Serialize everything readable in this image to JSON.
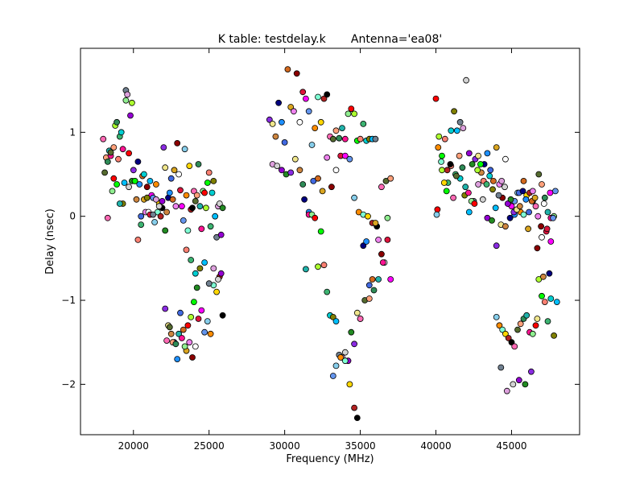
{
  "chart_data": {
    "type": "scatter",
    "title": "K table: testdelay.k       Antenna='ea08'",
    "xlabel": "Frequency (MHz)",
    "ylabel": "Delay (nsec)",
    "xlim": [
      16500,
      49500
    ],
    "ylim": [
      -2.6,
      2.0
    ],
    "xticks": [
      20000,
      25000,
      30000,
      35000,
      40000,
      45000
    ],
    "xtick_labels": [
      "20000",
      "25000",
      "30000",
      "35000",
      "40000",
      "45000"
    ],
    "yticks": [
      -2,
      -1,
      0,
      1
    ],
    "ytick_labels": [
      "−2",
      "−1",
      "0",
      "1"
    ],
    "grid": false,
    "legend": "none",
    "colors": [
      "#ff69b4",
      "#000080",
      "#90ee90",
      "#8b0000",
      "#00ced1",
      "#ff8c00",
      "#9400d3",
      "#556b2f",
      "#1e90ff",
      "#ff0000",
      "#ffffff",
      "#808000",
      "#7fffd4",
      "#228b22",
      "#ffa07a",
      "#4169e1",
      "#adff2f",
      "#dc143c",
      "#00bfff",
      "#ffd700",
      "#8a2be2",
      "#2e8b57",
      "#d2691e",
      "#00ff00",
      "#ff00ff",
      "#708090",
      "#b22222",
      "#f0e68c",
      "#20b2aa",
      "#daa520",
      "#fa8072",
      "#6495ed",
      "#dda0dd",
      "#000000",
      "#cd853f",
      "#ff1493",
      "#ee82ee",
      "#3cb371",
      "#87ceeb",
      "#d3d3d3"
    ],
    "series": [
      {
        "x": [
          18000,
          18100,
          18200,
          18300,
          18400,
          18500,
          18600,
          18700,
          18800,
          18900,
          19000,
          19100,
          19200,
          19300,
          19400,
          19500,
          19600,
          19700,
          19800,
          19900,
          20000,
          20100,
          20200,
          20300,
          20400,
          20500,
          20600,
          20700,
          20800,
          20900,
          21000,
          21100,
          21200,
          21300,
          21400,
          21500,
          21600,
          21700,
          21800,
          21900
        ],
        "y": [
          0.92,
          0.52,
          0.7,
          0.65,
          0.78,
          0.72,
          0.3,
          0.45,
          1.08,
          0.38,
          0.68,
          0.95,
          1.0,
          0.15,
          0.4,
          1.5,
          1.45,
          0.35,
          1.2,
          0.42,
          0.55,
          0.42,
          0.2,
          0.65,
          0.38,
          0.0,
          0.48,
          0.2,
          0.05,
          0.35,
          0.05,
          0.02,
          0.25,
          0.22,
          -0.07,
          0.38,
          0.05,
          0.15,
          0.0,
          0.1
        ]
      },
      {
        "x": [
          18300,
          18500,
          18700,
          18900,
          19100,
          19300,
          19500,
          19700,
          19900,
          20100,
          20300,
          20500,
          20700,
          20900,
          21100,
          21300,
          21500,
          21700,
          21900,
          22100
        ],
        "y": [
          -0.02,
          0.76,
          0.82,
          1.12,
          0.15,
          0.8,
          1.38,
          0.75,
          1.35,
          0.42,
          -0.28,
          -0.1,
          0.5,
          0.22,
          0.42,
          0.02,
          0.2,
          0.12,
          0.18,
          -0.17
        ]
      },
      {
        "x": [
          22000,
          22100,
          22200,
          22300,
          22400,
          22500,
          22600,
          22700,
          22800,
          22900,
          23000,
          23100,
          23200,
          23300,
          23400,
          23500,
          23600,
          23700,
          23800,
          23900,
          24000,
          24100,
          24200,
          24300,
          24400,
          24500,
          24600,
          24700,
          24800,
          24900,
          25000,
          25100,
          25200,
          25300,
          25400,
          25500,
          25600,
          25700,
          25800,
          25900
        ],
        "y": [
          0.82,
          0.58,
          0.05,
          0.22,
          0.28,
          0.45,
          0.2,
          0.55,
          0.12,
          0.87,
          0.5,
          0.31,
          0.12,
          -0.05,
          0.8,
          0.25,
          -0.17,
          0.6,
          0.08,
          0.1,
          0.3,
          0.18,
          0.25,
          0.62,
          0.12,
          -0.15,
          0.3,
          0.28,
          0.1,
          0.4,
          0.52,
          -0.12,
          0.28,
          0.42,
          0.0,
          -0.25,
          0.12,
          0.15,
          -0.22,
          0.1
        ]
      },
      {
        "x": [
          22100,
          22300,
          22500,
          22700,
          22900,
          23100,
          23300,
          23500,
          23700,
          23900,
          24100,
          24300,
          24500,
          24700,
          24900,
          25100,
          25300,
          25500,
          25700,
          25900,
          22200,
          22400,
          22600,
          22800,
          23000,
          23200,
          23400,
          23600,
          23800,
          24000
        ],
        "y": [
          -1.1,
          -1.3,
          -1.4,
          -1.5,
          -1.7,
          -1.15,
          -1.35,
          -1.6,
          -1.5,
          -1.68,
          -1.55,
          -1.22,
          -1.12,
          -1.38,
          -1.25,
          -1.4,
          -0.82,
          -0.9,
          -0.72,
          -1.18,
          -1.48,
          -1.32,
          -1.5,
          -1.52,
          -1.4,
          -1.45,
          -1.55,
          -1.3,
          -1.2,
          -1.02
        ]
      },
      {
        "x": [
          23500,
          23800,
          24100,
          24400,
          24700,
          25000,
          25300,
          25600,
          25800,
          24200
        ],
        "y": [
          -0.4,
          -0.52,
          -0.68,
          -0.62,
          -0.55,
          -0.8,
          -0.62,
          -0.75,
          -0.68,
          -0.85
        ]
      },
      {
        "x": [
          29000,
          29200,
          29400,
          29600,
          29800,
          30000,
          30200,
          30400,
          30600,
          30800,
          31000,
          31200,
          31400,
          31600,
          31800,
          32000,
          32200,
          32400,
          32600,
          32800,
          33000,
          33200,
          33400,
          33600,
          33800,
          34000,
          34200,
          34400,
          34600,
          34800,
          35000,
          35200,
          35400,
          35600,
          35800,
          36000
        ],
        "y": [
          1.15,
          1.1,
          0.95,
          1.35,
          1.12,
          0.88,
          1.75,
          1.3,
          1.25,
          1.7,
          1.12,
          1.48,
          1.4,
          1.25,
          0.85,
          1.05,
          1.42,
          1.12,
          1.4,
          1.45,
          0.95,
          0.92,
          1.02,
          0.93,
          1.05,
          0.92,
          1.22,
          1.28,
          1.22,
          0.9,
          0.92,
          1.1,
          0.9,
          0.92,
          0.92,
          0.92
        ]
      },
      {
        "x": [
          29200,
          29500,
          29800,
          30100,
          30400,
          30700,
          31000,
          31300,
          31600,
          31900,
          32200,
          32500,
          32800,
          33100,
          33400,
          33700,
          34000,
          34300,
          34600,
          34900,
          35200,
          35500,
          35800,
          36100,
          36400,
          36700,
          37000
        ],
        "y": [
          0.62,
          0.6,
          0.55,
          0.5,
          0.52,
          0.68,
          0.55,
          0.2,
          0.05,
          0.42,
          0.45,
          0.3,
          0.7,
          0.35,
          0.55,
          0.72,
          0.72,
          0.68,
          0.22,
          0.05,
          0.02,
          0.0,
          -0.08,
          -0.12,
          0.35,
          0.42,
          0.45
        ]
      },
      {
        "x": [
          31200,
          31400,
          31600,
          31800,
          32000,
          32200,
          32400,
          32600,
          32800,
          33000,
          33200,
          33400,
          33600,
          33800,
          34000,
          34200,
          34400,
          34600,
          34800,
          35000,
          35200,
          35400,
          35600,
          35800,
          36000,
          36200,
          36400,
          36600,
          36800,
          37000
        ],
        "y": [
          0.38,
          -0.63,
          0.02,
          0.02,
          -0.02,
          -0.6,
          -0.18,
          -0.58,
          -0.9,
          -1.18,
          -1.2,
          -1.25,
          -1.65,
          -1.68,
          -1.62,
          -1.72,
          -1.38,
          -1.52,
          -1.15,
          -1.22,
          -0.35,
          -0.3,
          -0.82,
          -0.75,
          -0.08,
          -0.28,
          -0.45,
          -0.55,
          -0.28,
          -0.75
        ]
      },
      {
        "x": [
          33200,
          33400,
          33700,
          34000,
          34300,
          34600,
          34800,
          35000,
          35300,
          35600,
          35900,
          36200,
          36500,
          36800
        ],
        "y": [
          -1.9,
          -1.78,
          -1.68,
          -1.72,
          -2.0,
          -2.28,
          -2.4,
          -1.22,
          -1.0,
          -0.98,
          -0.88,
          -0.75,
          -0.55,
          -0.02
        ]
      },
      {
        "x": [
          40000,
          40200,
          40400,
          40600,
          40800,
          41000,
          41200,
          41400,
          41600,
          41800,
          42000,
          42200,
          42400,
          42600,
          42800,
          43000,
          43200,
          43400,
          43600,
          43800,
          44000,
          44200,
          44400,
          44600,
          44800,
          45000,
          45200,
          45400,
          45600,
          45800,
          46000,
          46200,
          46400,
          46600,
          46800,
          47000,
          47200,
          47400,
          47600,
          47800
        ],
        "y": [
          1.4,
          0.95,
          0.72,
          0.92,
          0.4,
          1.02,
          1.25,
          1.02,
          1.12,
          1.05,
          1.62,
          0.75,
          0.62,
          0.68,
          0.72,
          0.52,
          0.62,
          0.75,
          0.55,
          0.42,
          0.82,
          0.38,
          0.22,
          0.68,
          0.15,
          0.12,
          0.18,
          0.28,
          0.05,
          0.02,
          0.25,
          0.28,
          0.18,
          0.12,
          0.5,
          0.38,
          0.22,
          0.05,
          -0.02,
          0.0
        ]
      },
      {
        "x": [
          40100,
          40400,
          40700,
          41000,
          41300,
          41600,
          41900,
          42200,
          42500,
          42800,
          43100,
          43400,
          43700,
          44000,
          44300,
          44600,
          44900,
          45200,
          45500,
          45800,
          46100,
          46400,
          46700,
          47000,
          47300,
          47600,
          47900
        ],
        "y": [
          0.08,
          0.55,
          0.3,
          0.6,
          0.5,
          0.45,
          0.25,
          0.05,
          0.18,
          0.38,
          0.2,
          -0.02,
          -0.05,
          -0.35,
          -0.1,
          -0.12,
          -0.02,
          0.02,
          0.28,
          0.42,
          -0.15,
          0.3,
          -0.38,
          -0.25,
          -0.18,
          -0.3,
          0.3
        ]
      },
      {
        "x": [
          40050,
          40150,
          40350,
          40550,
          40750,
          40950,
          41150,
          41350,
          41550,
          41750,
          41950,
          42150,
          42350,
          42550,
          42750,
          42950,
          43150,
          43350,
          43550,
          43750,
          43950,
          44150,
          44350,
          44550,
          44750,
          44950,
          45150,
          45350,
          45550,
          45750,
          45950,
          46150,
          46350,
          46550,
          46750,
          46950,
          47150,
          47350,
          47550,
          47750
        ],
        "y": [
          0.02,
          0.82,
          0.65,
          0.4,
          0.55,
          0.62,
          0.22,
          0.48,
          0.72,
          0.58,
          0.35,
          0.28,
          0.18,
          0.15,
          0.55,
          0.62,
          0.42,
          0.38,
          0.48,
          0.32,
          0.1,
          0.25,
          0.42,
          0.35,
          0.15,
          0.2,
          0.05,
          0.08,
          0.12,
          0.3,
          0.2,
          0.05,
          0.18,
          0.22,
          0.0,
          -0.12,
          0.15,
          -0.15,
          0.28,
          -0.02
        ]
      },
      {
        "x": [
          44000,
          44200,
          44400,
          44600,
          44800,
          45000,
          45200,
          45400,
          45600,
          45800,
          46000,
          46200,
          46400,
          46600,
          46800,
          47000,
          47200,
          47400,
          47600,
          47800,
          48000,
          44300,
          44700,
          45100,
          45500,
          45900,
          46300,
          46700,
          47100,
          47500
        ],
        "y": [
          -1.2,
          -1.3,
          -1.35,
          -1.4,
          -1.45,
          -1.5,
          -1.55,
          -1.35,
          -1.28,
          -1.22,
          -1.18,
          -1.38,
          -1.4,
          -1.3,
          -0.75,
          -0.95,
          -1.02,
          -1.25,
          -0.98,
          -1.42,
          -1.02,
          -1.8,
          -2.08,
          -2.0,
          -1.95,
          -2.0,
          -1.85,
          -1.22,
          -0.72,
          -0.68
        ]
      }
    ]
  }
}
